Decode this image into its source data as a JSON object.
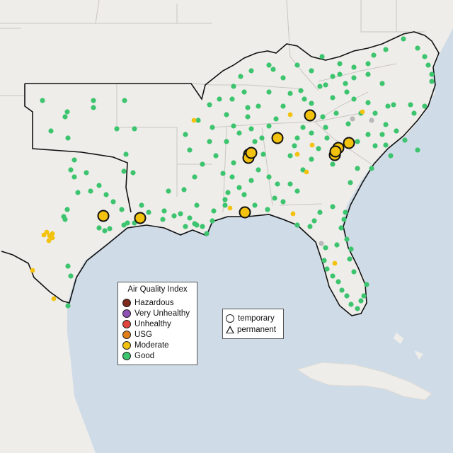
{
  "colors": {
    "ocean": "#cfdce7",
    "land": "#ece9e5",
    "land_outside": "#f2f0ed",
    "good": "#3cc46e",
    "moderate": "#f2c20e",
    "usg": "#e27e1a",
    "unhealthy": "#e0443a",
    "very_unhealthy": "#8e52b4",
    "hazardous": "#7d2a1c",
    "inactive": "#b8b8b8"
  },
  "aqi_legend": {
    "title": "Air Quality Index",
    "items": [
      {
        "label": "Hazardous",
        "color": "#7d2a1c"
      },
      {
        "label": "Very Unhealthy",
        "color": "#8e52b4"
      },
      {
        "label": "Unhealthy",
        "color": "#e0443a"
      },
      {
        "label": "USG",
        "color": "#e27e1a"
      },
      {
        "label": "Moderate",
        "color": "#f2c20e"
      },
      {
        "label": "Good",
        "color": "#3cc46e"
      }
    ]
  },
  "monitor_legend": {
    "items": [
      {
        "label": "temporary",
        "shape": "circle"
      },
      {
        "label": "permanent",
        "shape": "triangle"
      }
    ]
  },
  "highlighted_monitors": {
    "category": "Moderate",
    "count": 12
  }
}
